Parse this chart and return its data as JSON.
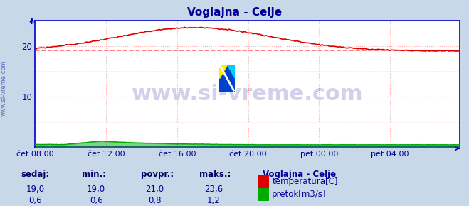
{
  "title": "Voglajna - Celje",
  "title_color": "#000099",
  "bg_color": "#c8d8e8",
  "plot_bg_color": "#ffffff",
  "grid_color_h": "#ffaaaa",
  "grid_color_v": "#ffaaaa",
  "axis_color": "#0000cc",
  "tick_color": "#000099",
  "x_labels": [
    "čet 08:00",
    "čet 12:00",
    "čet 16:00",
    "čet 20:00",
    "pet 00:00",
    "pet 04:00"
  ],
  "x_tick_positions": [
    0,
    48,
    96,
    144,
    192,
    240
  ],
  "total_points": 288,
  "y_min": 0,
  "y_max": 25,
  "y_ticks": [
    10,
    20
  ],
  "temp_color": "#dd0000",
  "flow_color": "#00aa00",
  "avg_line_value": 19.1,
  "avg_line_color": "#ff6666",
  "watermark_text": "www.si-vreme.com",
  "watermark_color": "#000099",
  "watermark_alpha": 0.18,
  "watermark_fontsize": 22,
  "sidebar_text": "www.si-vreme.com",
  "sidebar_color": "#000099",
  "sidebar_alpha": 0.5,
  "legend_title": "Voglajna - Celje",
  "legend_title_color": "#000099",
  "legend_color": "#000099",
  "stats_color": "#000099",
  "stats_bold_color": "#000066",
  "sedaj_label": "sedaj:",
  "min_label": "min.:",
  "povpr_label": "povpr.:",
  "maks_label": "maks.:",
  "temp_sedaj": "19,0",
  "temp_min": "19,0",
  "temp_povpr": "21,0",
  "temp_maks": "23,6",
  "flow_sedaj": "0,6",
  "flow_min": "0,6",
  "flow_povpr": "0,8",
  "flow_maks": "1,2",
  "temp_legend": "temperatura[C]",
  "flow_legend": "pretok[m3/s]",
  "logo_yellow": "#ffee00",
  "logo_blue": "#0044cc",
  "logo_cyan": "#00ccff"
}
